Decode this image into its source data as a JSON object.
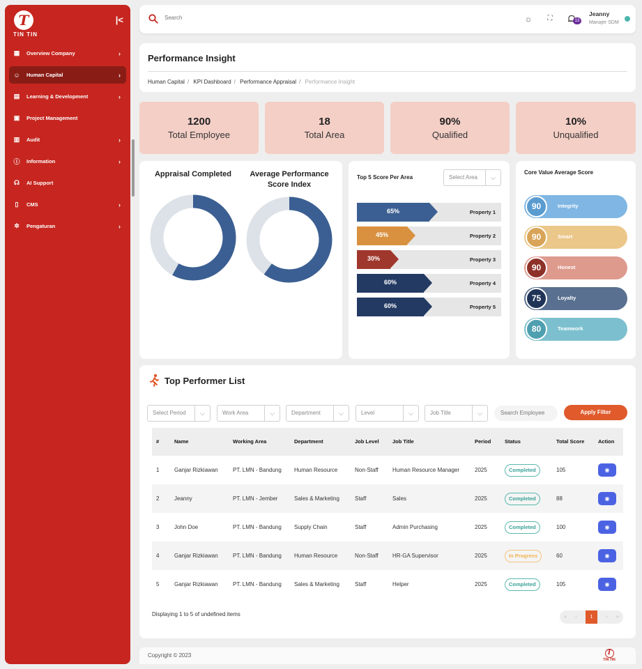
{
  "brand": {
    "name": "TIN TIN",
    "mark": "T"
  },
  "sidebar": {
    "items": [
      {
        "label": "Overview Company",
        "icon": "building-icon",
        "has_chevron": true
      },
      {
        "label": "Human Capital",
        "icon": "users-icon",
        "has_chevron": true,
        "active": true
      },
      {
        "label": "Learning & Development",
        "icon": "book-icon",
        "has_chevron": true
      },
      {
        "label": "Project Management",
        "icon": "briefcase-icon",
        "has_chevron": false
      },
      {
        "label": "Audit",
        "icon": "audit-icon",
        "has_chevron": true
      },
      {
        "label": "Information",
        "icon": "info-icon",
        "has_chevron": true
      },
      {
        "label": "AI Support",
        "icon": "headset-icon",
        "has_chevron": false
      },
      {
        "label": "CMS",
        "icon": "clipboard-icon",
        "has_chevron": true
      },
      {
        "label": "Pengaturan",
        "icon": "gear-icon",
        "has_chevron": true
      }
    ]
  },
  "topbar": {
    "search_placeholder": "Search",
    "notification_count": "13",
    "user_name": "Jeanny",
    "user_role": "Manajer SDM"
  },
  "header": {
    "title": "Performance Insight",
    "breadcrumb": [
      "Human Capital",
      "KPI Dashboard",
      "Performance Appraisal",
      "Performance Insight"
    ]
  },
  "stats": [
    {
      "value": "1200",
      "label": "Total Employee"
    },
    {
      "value": "18",
      "label": "Total Area"
    },
    {
      "value": "90%",
      "label": "Qualified"
    },
    {
      "value": "10%",
      "label": "Unqualified"
    }
  ],
  "donuts": [
    {
      "title": "Appraisal Completed",
      "fraction": 0.58,
      "fill_color": "#3b5f92",
      "track_color": "#dde2e8"
    },
    {
      "title": "Average Performance Score Index",
      "fraction": 0.6,
      "fill_color": "#3b5f92",
      "track_color": "#dde2e8"
    }
  ],
  "top5": {
    "title": "Top 5 Score Per Area",
    "select_placeholder": "Select Area",
    "bars": [
      {
        "label": "Property 1",
        "value": 65,
        "text": "65%",
        "color": "#3b5f92"
      },
      {
        "label": "Property 2",
        "value": 45,
        "text": "45%",
        "color": "#d9913f"
      },
      {
        "label": "Property 3",
        "value": 30,
        "text": "30%",
        "color": "#a0372d"
      },
      {
        "label": "Property 4",
        "value": 60,
        "text": "60%",
        "color": "#233a63"
      },
      {
        "label": "Property 5",
        "value": 60,
        "text": "60%",
        "color": "#233a63"
      }
    ]
  },
  "core_values": {
    "title": "Core Value Average Score",
    "items": [
      {
        "score": "90",
        "name": "Integrity",
        "bg": "#7fb6e3",
        "circle": "#5a9bd0"
      },
      {
        "score": "90",
        "name": "Smart",
        "bg": "#ebc789",
        "circle": "#d9a457"
      },
      {
        "score": "90",
        "name": "Honest",
        "bg": "#df9a8e",
        "circle": "#8e3128"
      },
      {
        "score": "75",
        "name": "Loyalty",
        "bg": "#5a7090",
        "circle": "#1f3457"
      },
      {
        "score": "80",
        "name": "Teamwork",
        "bg": "#7cc0cf",
        "circle": "#4e9fb0"
      }
    ]
  },
  "top_performers": {
    "title": "Top Performer List",
    "filters": [
      "Select Period",
      "Work Area",
      "Department",
      "Level",
      "Job Title"
    ],
    "search_placeholder": "Search Employee",
    "apply_label": "Apply Filter",
    "columns": [
      "#",
      "Name",
      "Working Area",
      "Department",
      "Job Level",
      "Job Title",
      "Period",
      "Status",
      "Total Score",
      "Action"
    ],
    "rows": [
      {
        "no": "1",
        "name": "Ganjar Rizkiawan",
        "area": "PT. LMN - Bandung",
        "dept": "Human Resource",
        "level": "Non-Staff",
        "title": "Human Resource Manager",
        "period": "2025",
        "status": "Completed",
        "score": "105"
      },
      {
        "no": "2",
        "name": "Jeanny",
        "area": "PT. LMN - Jember",
        "dept": "Sales & Marketing",
        "level": "Staff",
        "title": "Sales",
        "period": "2025",
        "status": "Completed",
        "score": "88"
      },
      {
        "no": "3",
        "name": "John Doe",
        "area": "PT. LMN - Bandung",
        "dept": "Supply Chain",
        "level": "Staff",
        "title": "Admin Purchasing",
        "period": "2025",
        "status": "Completed",
        "score": "100"
      },
      {
        "no": "4",
        "name": "Ganjar Rizkiawan",
        "area": "PT. LMN - Bandung",
        "dept": "Human Resource",
        "level": "Non-Staff",
        "title": "HR-GA Supervisor",
        "period": "2025",
        "status": "In Progress",
        "score": "60"
      },
      {
        "no": "5",
        "name": "Ganjar Rizkiawan",
        "area": "PT. LMN - Bandung",
        "dept": "Sales & Marketing",
        "level": "Staff",
        "title": "Helper",
        "period": "2025",
        "status": "Completed",
        "score": "105"
      }
    ],
    "footer_text": "Displaying 1 to 5 of undefined items",
    "pager": {
      "first": "«",
      "prev": "‹",
      "page": "1",
      "next": "›",
      "last": "»"
    }
  },
  "footer": {
    "copyright": "Copyright © 2023"
  }
}
